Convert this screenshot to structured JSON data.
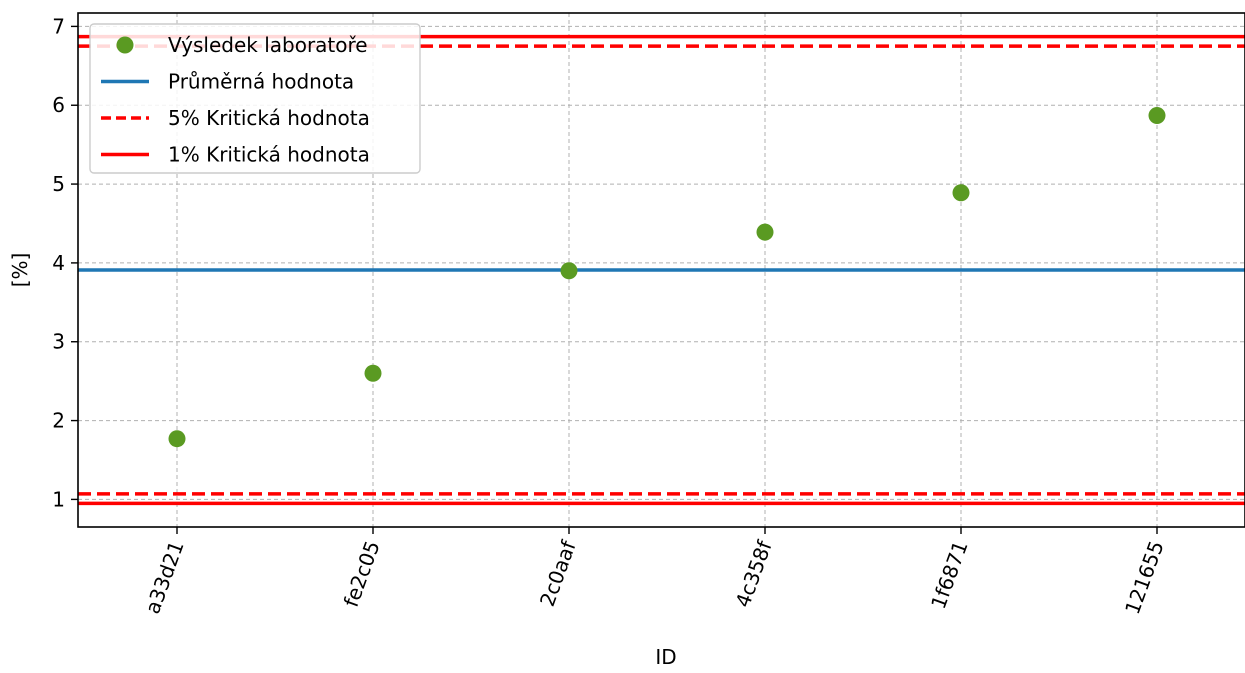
{
  "chart_data": {
    "type": "scatter",
    "xlabel": "ID",
    "ylabel": "[%]",
    "ylim": [
      0.65,
      7.17
    ],
    "yticks": [
      1,
      2,
      3,
      4,
      5,
      6,
      7
    ],
    "grid": true,
    "legend_position": "top-left",
    "categories": [
      "a33d21",
      "fe2c05",
      "2c0aaf",
      "4c358f",
      "1f6871",
      "121655"
    ],
    "series": [
      {
        "name": "Výsledek laboratoře",
        "kind": "points",
        "color": "#5a9a22",
        "values": [
          1.77,
          2.6,
          3.9,
          4.39,
          4.89,
          5.87
        ]
      }
    ],
    "reference_lines": [
      {
        "name": "Průměrná hodnota",
        "value": 3.91,
        "color": "#1f77b4",
        "style": "solid"
      },
      {
        "name": "5% Kritická hodnota",
        "values": [
          6.75,
          1.07
        ],
        "color": "#ff0000",
        "style": "dashed"
      },
      {
        "name": "1% Kritická hodnota",
        "values": [
          6.87,
          0.95
        ],
        "color": "#ff0000",
        "style": "solid"
      }
    ]
  }
}
